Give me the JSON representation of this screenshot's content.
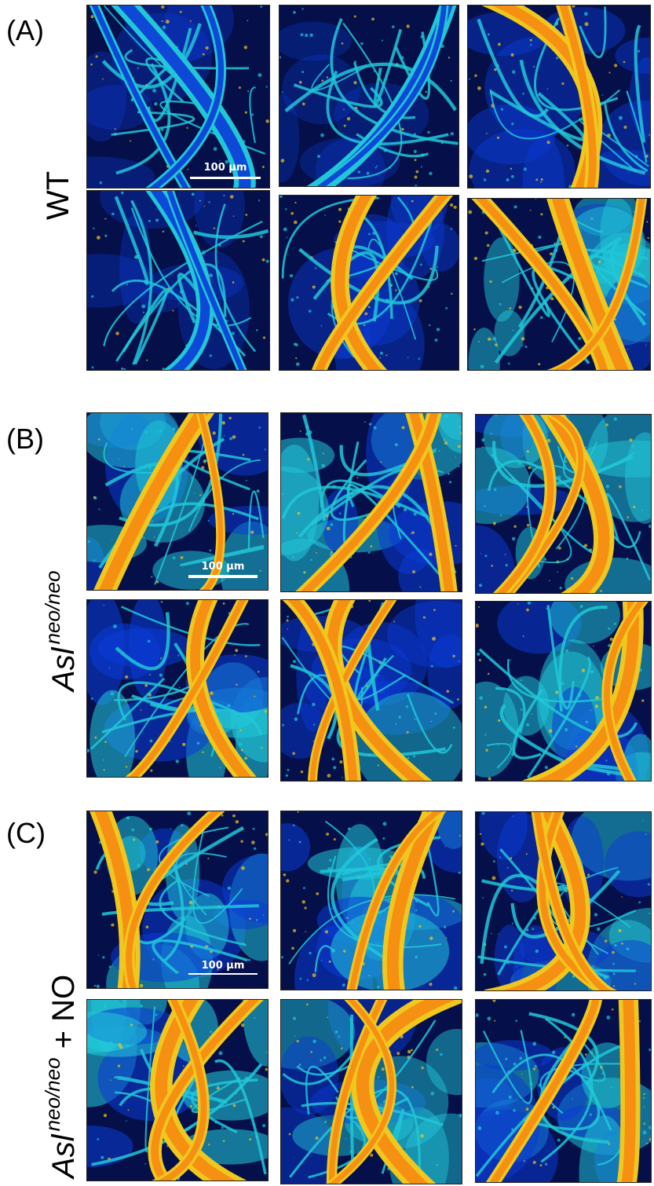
{
  "panels": [
    {
      "letter": "(A)",
      "row_label": {
        "main": "WT",
        "sup": "",
        "suffix": ""
      }
    },
    {
      "letter": "(B)",
      "row_label": {
        "main": "Asl",
        "sup": "neo/neo",
        "suffix": ""
      }
    },
    {
      "letter": "(C)",
      "row_label": {
        "main": "Asl",
        "sup": "neo/neo",
        "suffix": " + NO"
      }
    }
  ],
  "scale_bar": "100 μm",
  "colors": {
    "background": "#05104a",
    "low": "#0b3bd6",
    "mid": "#21c7d8",
    "high": "#f0c71e",
    "peak": "#f58a12"
  },
  "tiles": [
    {
      "name": "a1",
      "intensity": 0.2
    },
    {
      "name": "a2",
      "intensity": 0.15
    },
    {
      "name": "a3",
      "intensity": 0.6
    },
    {
      "name": "a4",
      "intensity": 0.25
    },
    {
      "name": "a5",
      "intensity": 0.55
    },
    {
      "name": "a6",
      "intensity": 0.7
    },
    {
      "name": "b1",
      "intensity": 0.8
    },
    {
      "name": "b2",
      "intensity": 0.85
    },
    {
      "name": "b3",
      "intensity": 0.75
    },
    {
      "name": "b4",
      "intensity": 0.9
    },
    {
      "name": "b5",
      "intensity": 0.65
    },
    {
      "name": "b6",
      "intensity": 0.8
    },
    {
      "name": "c1",
      "intensity": 0.8
    },
    {
      "name": "c2",
      "intensity": 0.85
    },
    {
      "name": "c3",
      "intensity": 0.75
    },
    {
      "name": "c4",
      "intensity": 0.9
    },
    {
      "name": "c5",
      "intensity": 0.65
    },
    {
      "name": "c6",
      "intensity": 0.8
    }
  ]
}
